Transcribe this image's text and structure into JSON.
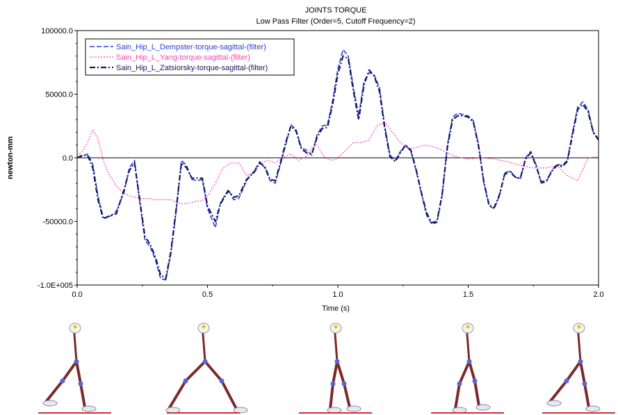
{
  "chart_data": {
    "type": "line",
    "title": "JOINTS TORQUE",
    "subtitle": "Low Pass Filter (Order=5, Cutoff Frequency=2)",
    "xlabel": "Time (s)",
    "ylabel": "newton-mm",
    "xlim": [
      0.0,
      2.0
    ],
    "ylim": [
      -100000,
      100000
    ],
    "x_ticks": [
      0.0,
      0.5,
      1.0,
      1.5,
      2.0
    ],
    "x_tick_labels": [
      "0.0",
      "0.5",
      "1.0",
      "1.5",
      "2.0"
    ],
    "y_ticks": [
      100000,
      50000,
      0,
      -50000,
      -100000
    ],
    "y_tick_labels": [
      "100000.0",
      "50000.0",
      "0.0",
      "-50000.0",
      "-1.0E+005"
    ],
    "legend_position": "top-left",
    "grid": false,
    "zero_line": true,
    "series": [
      {
        "name": "Sain_Hip_L_Dempster-torque-sagittal-(filter)",
        "color": "#2a3cd8",
        "dash": "dashed",
        "x": [
          0.0,
          0.02,
          0.04,
          0.06,
          0.08,
          0.1,
          0.12,
          0.15,
          0.18,
          0.2,
          0.22,
          0.24,
          0.26,
          0.28,
          0.3,
          0.32,
          0.34,
          0.36,
          0.38,
          0.4,
          0.42,
          0.44,
          0.46,
          0.48,
          0.5,
          0.53,
          0.55,
          0.58,
          0.6,
          0.62,
          0.65,
          0.68,
          0.7,
          0.72,
          0.74,
          0.76,
          0.78,
          0.8,
          0.82,
          0.84,
          0.86,
          0.88,
          0.9,
          0.92,
          0.94,
          0.96,
          0.98,
          1.0,
          1.02,
          1.04,
          1.06,
          1.08,
          1.1,
          1.12,
          1.14,
          1.16,
          1.18,
          1.2,
          1.22,
          1.24,
          1.26,
          1.28,
          1.3,
          1.32,
          1.34,
          1.36,
          1.38,
          1.4,
          1.42,
          1.44,
          1.46,
          1.48,
          1.5,
          1.52,
          1.54,
          1.56,
          1.58,
          1.6,
          1.62,
          1.64,
          1.66,
          1.68,
          1.7,
          1.72,
          1.74,
          1.76,
          1.78,
          1.8,
          1.82,
          1.84,
          1.86,
          1.88,
          1.9,
          1.92,
          1.94,
          1.96,
          1.98,
          2.0
        ],
        "values": [
          0,
          1000,
          3000,
          -5000,
          -30000,
          -47000,
          -47000,
          -42000,
          -27000,
          -8000,
          -2000,
          -35000,
          -65000,
          -70000,
          -80000,
          -95000,
          -96000,
          -75000,
          -42000,
          -2000,
          -6000,
          -17000,
          -18000,
          -17000,
          -40000,
          -55000,
          -35000,
          -25000,
          -33000,
          -32000,
          -18000,
          -10000,
          -3000,
          -8000,
          -18000,
          -20000,
          -5000,
          10000,
          26000,
          22000,
          8000,
          6000,
          2000,
          18000,
          25000,
          26000,
          45000,
          70000,
          85000,
          80000,
          55000,
          33000,
          60000,
          67000,
          65000,
          55000,
          25000,
          2000,
          -2000,
          5000,
          10000,
          5000,
          -10000,
          -28000,
          -45000,
          -52000,
          -51000,
          -30000,
          10000,
          32000,
          35000,
          34000,
          33000,
          29000,
          10000,
          -20000,
          -38000,
          -40000,
          -30000,
          -12000,
          -10000,
          -15000,
          -17000,
          0,
          5000,
          -5000,
          -20000,
          -19000,
          -10000,
          -5000,
          -6000,
          -2000,
          20000,
          40000,
          44000,
          38000,
          20000,
          15000
        ]
      },
      {
        "name": "Sain_Hip_L_Yang-torque-sagittal-(filter)",
        "color": "#ff3fae",
        "dash": "dotted",
        "x": [
          0.0,
          0.02,
          0.04,
          0.06,
          0.08,
          0.1,
          0.12,
          0.15,
          0.18,
          0.2,
          0.22,
          0.25,
          0.28,
          0.3,
          0.33,
          0.36,
          0.38,
          0.4,
          0.42,
          0.44,
          0.46,
          0.48,
          0.5,
          0.53,
          0.56,
          0.59,
          0.62,
          0.65,
          0.68,
          0.7,
          0.73,
          0.76,
          0.79,
          0.82,
          0.85,
          0.88,
          0.9,
          0.92,
          0.95,
          0.98,
          1.0,
          1.03,
          1.06,
          1.09,
          1.12,
          1.15,
          1.18,
          1.21,
          1.24,
          1.27,
          1.3,
          1.33,
          1.36,
          1.39,
          1.42,
          1.45,
          1.5,
          1.55,
          1.6,
          1.65,
          1.7,
          1.75,
          1.8,
          1.84,
          1.88,
          1.92,
          1.96,
          2.0
        ],
        "values": [
          2000,
          5000,
          12000,
          22000,
          15000,
          -2000,
          -12000,
          -22000,
          -28000,
          -30000,
          -31000,
          -32000,
          -32000,
          -33000,
          -33000,
          -33000,
          -35000,
          -36000,
          -36000,
          -35000,
          -34000,
          -34000,
          -30000,
          -20000,
          -8000,
          -4000,
          -4000,
          -14000,
          -12000,
          -5000,
          -2000,
          -4000,
          0,
          3000,
          -2000,
          1000,
          8000,
          10000,
          0,
          -2000,
          0,
          6000,
          12000,
          12000,
          14000,
          25000,
          28000,
          20000,
          12000,
          7000,
          8000,
          10000,
          9000,
          7000,
          4000,
          1000,
          -1000,
          0,
          -1000,
          -3000,
          -6000,
          -8000,
          -8000,
          -6000,
          -14000,
          -18000,
          0,
          1000
        ]
      },
      {
        "name": "Sain_Hip_L_Zatsiorsky-torque-sagittal-(filter)",
        "color": "#141858",
        "dash": "dash-dot",
        "x": [
          0.0,
          0.02,
          0.04,
          0.06,
          0.08,
          0.1,
          0.12,
          0.15,
          0.18,
          0.2,
          0.22,
          0.24,
          0.26,
          0.28,
          0.3,
          0.32,
          0.34,
          0.36,
          0.38,
          0.4,
          0.42,
          0.44,
          0.46,
          0.48,
          0.5,
          0.53,
          0.55,
          0.58,
          0.6,
          0.62,
          0.65,
          0.68,
          0.7,
          0.72,
          0.74,
          0.76,
          0.78,
          0.8,
          0.82,
          0.84,
          0.86,
          0.88,
          0.9,
          0.92,
          0.94,
          0.96,
          0.98,
          1.0,
          1.02,
          1.04,
          1.06,
          1.08,
          1.1,
          1.12,
          1.14,
          1.16,
          1.18,
          1.2,
          1.22,
          1.24,
          1.26,
          1.28,
          1.3,
          1.32,
          1.34,
          1.36,
          1.38,
          1.4,
          1.42,
          1.44,
          1.46,
          1.48,
          1.5,
          1.52,
          1.54,
          1.56,
          1.58,
          1.6,
          1.62,
          1.64,
          1.66,
          1.68,
          1.7,
          1.72,
          1.74,
          1.76,
          1.78,
          1.8,
          1.82,
          1.84,
          1.86,
          1.88,
          1.9,
          1.92,
          1.94,
          1.96,
          1.98,
          2.0
        ],
        "values": [
          0,
          2000,
          2000,
          -8000,
          -33000,
          -48000,
          -46000,
          -44000,
          -25000,
          -10000,
          -4000,
          -33000,
          -62000,
          -68000,
          -78000,
          -92000,
          -95000,
          -73000,
          -40000,
          -4000,
          -8000,
          -16000,
          -16000,
          -16000,
          -38000,
          -50000,
          -36000,
          -26000,
          -31000,
          -30000,
          -17000,
          -11000,
          -4000,
          -7000,
          -17000,
          -18000,
          -4000,
          12000,
          25000,
          21000,
          7000,
          4000,
          3000,
          16000,
          23000,
          24000,
          42000,
          66000,
          80000,
          78000,
          52000,
          30000,
          57000,
          69000,
          64000,
          52000,
          23000,
          1000,
          -3000,
          4000,
          10000,
          6000,
          -9000,
          -27000,
          -43000,
          -51000,
          -50000,
          -29000,
          8000,
          30000,
          33000,
          33000,
          32000,
          28000,
          9000,
          -19000,
          -37000,
          -39000,
          -29000,
          -13000,
          -11000,
          -15000,
          -16000,
          -1000,
          4000,
          -6000,
          -19000,
          -18000,
          -11000,
          -6000,
          -7000,
          -3000,
          18000,
          38000,
          42000,
          36000,
          20000,
          14000
        ]
      }
    ]
  }
}
